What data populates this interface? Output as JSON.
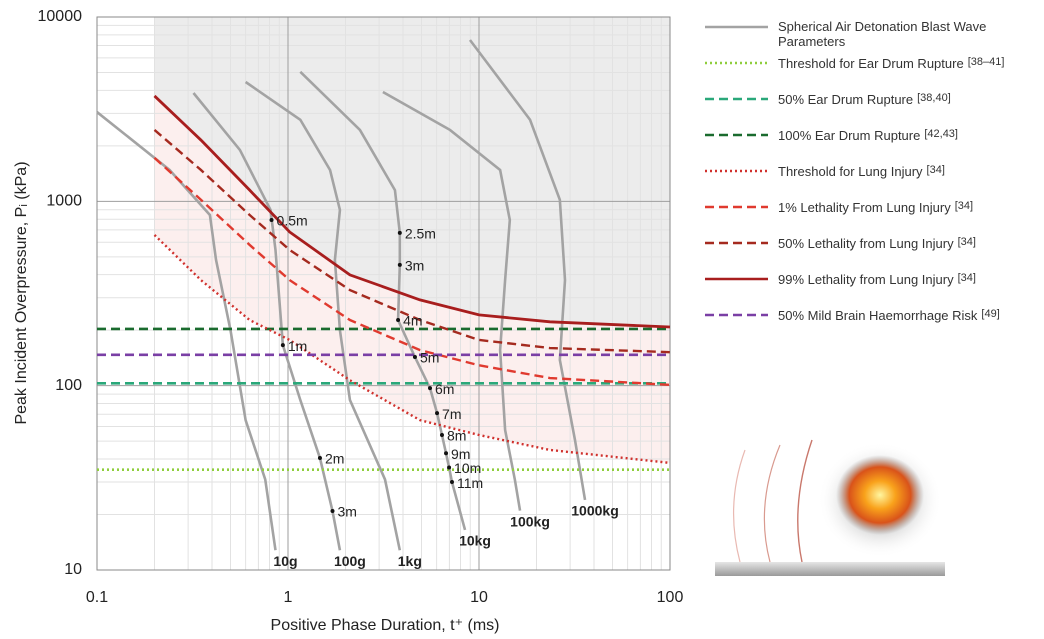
{
  "chart_data": {
    "type": "line",
    "xscale": "log",
    "yscale": "log",
    "x_label": "Positive Phase Duration, t⁺ (ms)",
    "y_label": "Peak Incident Overpressure, Pᵢ (kPa)",
    "xlim": [
      0.1,
      100
    ],
    "ylim": [
      10,
      10000
    ],
    "xticks": [
      0.1,
      1,
      10,
      100
    ],
    "yticks": [
      10,
      100,
      1000,
      10000
    ],
    "grid": true,
    "blast_waves": {
      "name": "Spherical Air Detonation Blast Wave Parameters",
      "color": "#a3a3a3",
      "curves": [
        {
          "name": "10g",
          "x": [
            0.1,
            0.24,
            0.39,
            0.42,
            0.5,
            0.6,
            0.76,
            0.86
          ],
          "values": [
            3050,
            1480,
            843,
            481,
            200,
            65,
            31,
            12.8
          ]
        },
        {
          "name": "100g",
          "x": [
            0.32,
            0.56,
            0.81,
            0.86,
            0.94,
            1.16,
            1.47,
            1.71,
            1.87
          ],
          "values": [
            3870,
            1900,
            898,
            545,
            166,
            83.6,
            40.5,
            20.9,
            12.8
          ]
        },
        {
          "name": "1kg",
          "x": [
            0.6,
            1.16,
            1.66,
            1.87,
            1.76,
            1.87,
            2.11,
            3.22,
            3.85
          ],
          "values": [
            4440,
            2770,
            1480,
            898,
            481,
            200,
            83.6,
            31,
            12.8
          ]
        },
        {
          "name": "10kg",
          "x": [
            1.16,
            2.38,
            3.63,
            3.85,
            3.85,
            3.77,
            4.62,
            5.54,
            6.03,
            6.4,
            6.72,
            6.97,
            7.22,
            8.45
          ],
          "values": [
            5040,
            2440,
            1150,
            674,
            452,
            227,
            143,
            97,
            71,
            54,
            43,
            36,
            30,
            16.5
          ]
        },
        {
          "name": "100kg",
          "x": [
            3.14,
            7.05,
            12.9,
            14.5,
            13.7,
            12.9,
            13.7,
            15.4,
            16.4
          ],
          "values": [
            3920,
            2440,
            1480,
            792,
            374,
            156,
            57.5,
            31,
            21
          ]
        },
        {
          "name": "1000kg",
          "x": [
            8.97,
            18.5,
            26.5,
            28.2,
            26.5,
            31.8,
            35.9
          ],
          "values": [
            7500,
            2770,
            1020,
            374,
            138,
            50.8,
            24
          ]
        }
      ],
      "points": [
        {
          "name": "0.5m",
          "x": 0.82,
          "value": 792
        },
        {
          "name": "1m",
          "x": 0.94,
          "value": 166
        },
        {
          "name": "2m",
          "x": 1.47,
          "value": 40.5
        },
        {
          "name": "3m",
          "x": 1.71,
          "value": 20.9
        },
        {
          "name": "2.5m",
          "x": 3.85,
          "value": 674
        },
        {
          "name": "3m",
          "x": 3.85,
          "value": 452
        },
        {
          "name": "4m",
          "x": 3.77,
          "value": 227
        },
        {
          "name": "5m",
          "x": 4.62,
          "value": 143
        },
        {
          "name": "6m",
          "x": 5.54,
          "value": 97
        },
        {
          "name": "7m",
          "x": 6.03,
          "value": 71
        },
        {
          "name": "8m",
          "x": 6.4,
          "value": 54
        },
        {
          "name": "9m",
          "x": 6.72,
          "value": 43
        },
        {
          "name": "10m",
          "x": 6.97,
          "value": 36
        },
        {
          "name": "11m",
          "x": 7.22,
          "value": 30
        }
      ]
    },
    "series": [
      {
        "name": "Threshold for Ear Drum Rupture",
        "ref": "[38–41]",
        "color": "#8fce3c",
        "style": "dotted",
        "level": 35
      },
      {
        "name": "50% Ear Drum Rupture",
        "ref": "[38,40]",
        "color": "#2aa87a",
        "style": "dashed",
        "level": 103
      },
      {
        "name": "100% Ear Drum Rupture",
        "ref": "[42,43]",
        "color": "#1a6b2e",
        "style": "dashed",
        "level": 203
      },
      {
        "name": "Threshold for Lung Injury",
        "ref": "[34]",
        "color": "#d0312d",
        "style": "dotted",
        "shade": "#fcefee",
        "x": [
          0.2,
          0.35,
          0.63,
          1.02,
          2.11,
          4.91,
          10,
          23.5,
          100
        ],
        "values": [
          657,
          374,
          227,
          177,
          107,
          65,
          54,
          44.8,
          38.1
        ]
      },
      {
        "name": "1% Lethality From Lung Injury",
        "ref": "[34]",
        "color": "#e03a2f",
        "style": "dashed",
        "x": [
          0.2,
          0.35,
          0.63,
          1.02,
          2.11,
          4.91,
          10,
          23.5,
          100
        ],
        "values": [
          1720,
          1020,
          580,
          374,
          227,
          156,
          129,
          110,
          101
        ]
      },
      {
        "name": "50% Lethality from Lung Injury",
        "ref": "[34]",
        "color": "#a52a1f",
        "style": "dashed",
        "x": [
          0.2,
          0.35,
          0.63,
          1.02,
          2.11,
          4.91,
          10,
          23.5,
          100
        ],
        "values": [
          2440,
          1480,
          843,
          545,
          330,
          227,
          177,
          160,
          152
        ]
      },
      {
        "name": "99% Lethality from Lung Injury",
        "ref": "[34]",
        "color": "#a81e1e",
        "style": "solid",
        "shade": "#ececec",
        "x": [
          0.2,
          0.35,
          0.63,
          1.02,
          2.11,
          4.91,
          10,
          23.5,
          100
        ],
        "values": [
          3730,
          2150,
          1150,
          682,
          399,
          292,
          242,
          222,
          208
        ]
      },
      {
        "name": "50% Mild Brain Haemorrhage Risk",
        "ref": "[49]",
        "color": "#7a3fa5",
        "style": "dashed",
        "level": 147
      }
    ]
  }
}
